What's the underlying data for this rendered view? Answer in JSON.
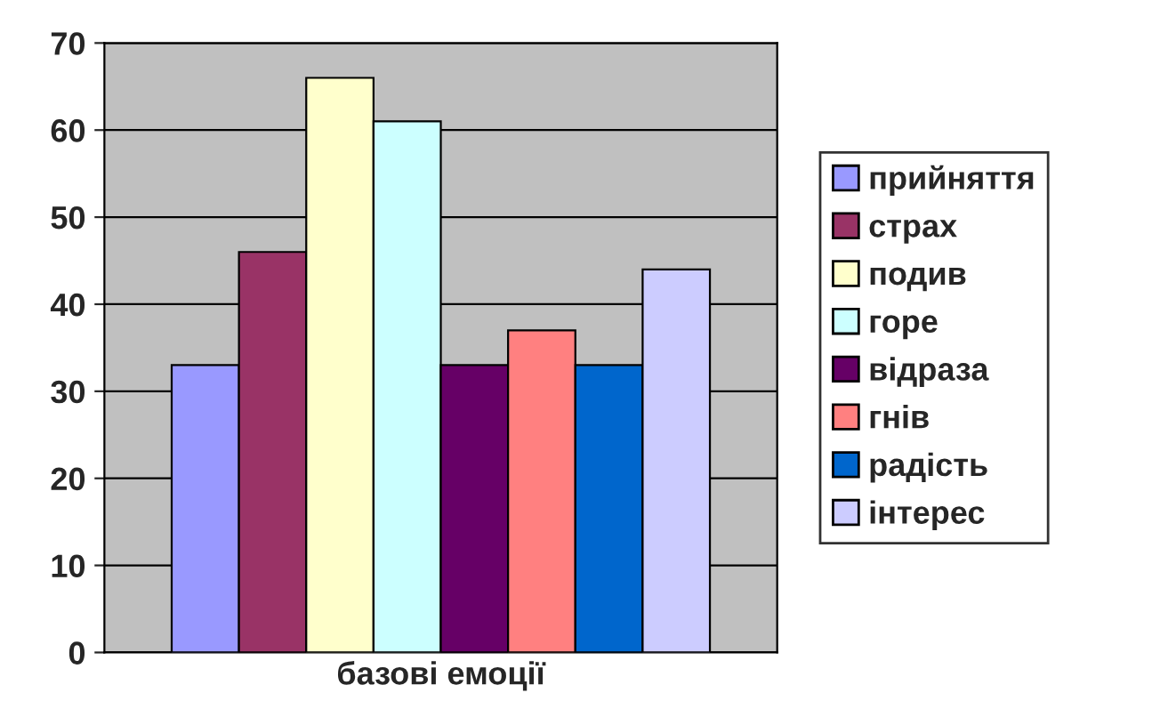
{
  "chart_data": {
    "type": "bar",
    "categories": [
      "базові емоції"
    ],
    "series": [
      {
        "name": "прийняття",
        "color": "#9999ff",
        "values": [
          33
        ]
      },
      {
        "name": "страх",
        "color": "#993366",
        "values": [
          46
        ]
      },
      {
        "name": "подив",
        "color": "#ffffcc",
        "values": [
          66
        ]
      },
      {
        "name": "горе",
        "color": "#ccffff",
        "values": [
          61
        ]
      },
      {
        "name": "відраза",
        "color": "#660066",
        "values": [
          33
        ]
      },
      {
        "name": "гнів",
        "color": "#ff8080",
        "values": [
          37
        ]
      },
      {
        "name": "радість",
        "color": "#0066cc",
        "values": [
          33
        ]
      },
      {
        "name": "інтерес",
        "color": "#ccccff",
        "values": [
          44
        ]
      }
    ],
    "ylim": [
      0,
      70
    ],
    "yticks": [
      0,
      10,
      20,
      30,
      40,
      50,
      60,
      70
    ],
    "grid": "y",
    "legend": "right"
  }
}
